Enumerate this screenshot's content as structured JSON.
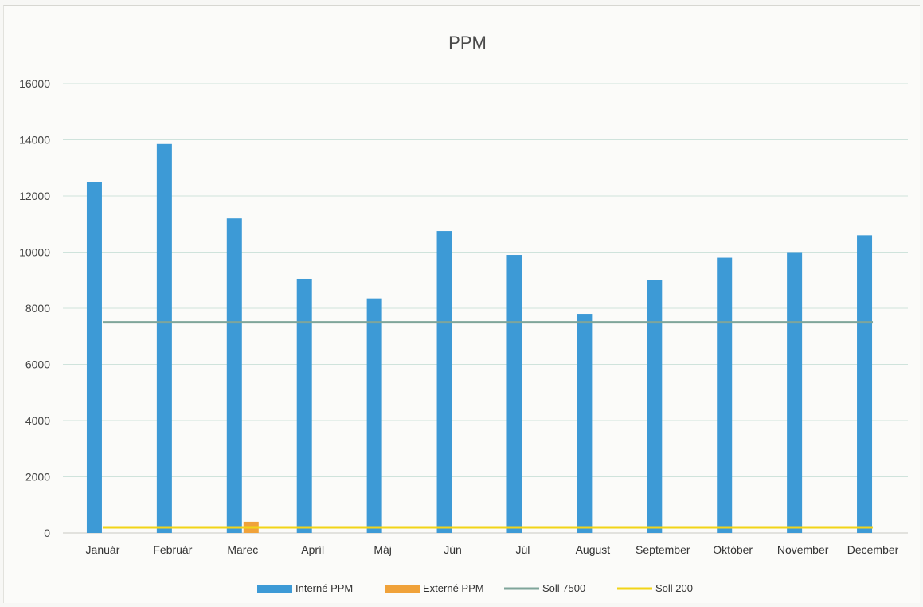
{
  "chart_data": {
    "type": "bar",
    "title": "PPM",
    "xlabel": "",
    "ylabel": "",
    "ylim": [
      0,
      16000
    ],
    "yticks": [
      0,
      2000,
      4000,
      6000,
      8000,
      10000,
      12000,
      14000,
      16000
    ],
    "grid": true,
    "legend_position": "bottom",
    "categories": [
      "Január",
      "Február",
      "Marec",
      "Apríl",
      "Máj",
      "Jún",
      "Júl",
      "August",
      "September",
      "Október",
      "November",
      "December"
    ],
    "series": [
      {
        "name": "Interné PPM",
        "kind": "bar",
        "color": "#3d9ad6",
        "values": [
          12500,
          13850,
          11200,
          9050,
          8350,
          10750,
          9900,
          7800,
          9000,
          9800,
          10000,
          10600
        ]
      },
      {
        "name": "Externé PPM",
        "kind": "bar",
        "color": "#f0a23a",
        "values": [
          0,
          0,
          400,
          0,
          0,
          0,
          0,
          0,
          0,
          0,
          0,
          0
        ]
      },
      {
        "name": "Soll 7500",
        "kind": "line",
        "color": "#7fa59a",
        "values": [
          7500,
          7500,
          7500,
          7500,
          7500,
          7500,
          7500,
          7500,
          7500,
          7500,
          7500,
          7500
        ]
      },
      {
        "name": "Soll 200",
        "kind": "line",
        "color": "#f2d418",
        "values": [
          200,
          200,
          200,
          200,
          200,
          200,
          200,
          200,
          200,
          200,
          200,
          200
        ]
      }
    ]
  }
}
